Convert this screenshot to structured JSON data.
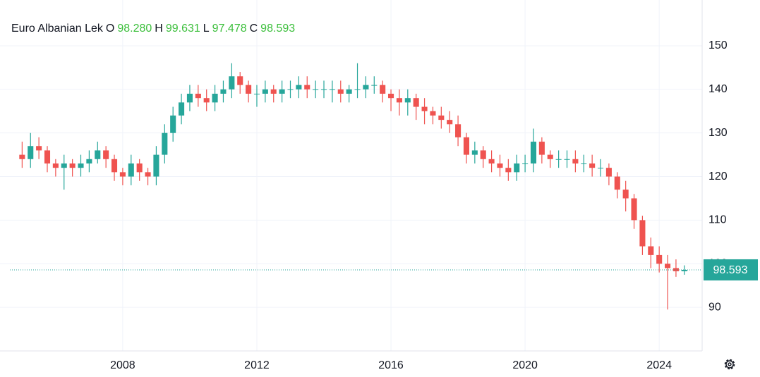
{
  "chart_data": {
    "type": "candlestick",
    "title": "Euro Albanian Lek",
    "legend": {
      "open_key": "O",
      "open": {
        "value": 98.28,
        "label": "98.280"
      },
      "high_key": "H",
      "high": {
        "value": 99.631,
        "label": "99.631"
      },
      "low_key": "L",
      "low": {
        "value": 97.478,
        "label": "97.478"
      },
      "close_key": "C",
      "close": {
        "value": 98.593,
        "label": "98.593"
      }
    },
    "last_price": {
      "value": 98.593,
      "label": "98.593"
    },
    "up_color": "#26a69a",
    "down_color": "#ef5350",
    "x": [
      2005,
      2005.25,
      2005.5,
      2005.75,
      2006,
      2006.25,
      2006.5,
      2006.75,
      2007,
      2007.25,
      2007.5,
      2007.75,
      2008,
      2008.25,
      2008.5,
      2008.75,
      2009,
      2009.25,
      2009.5,
      2009.75,
      2010,
      2010.25,
      2010.5,
      2010.75,
      2011,
      2011.25,
      2011.5,
      2011.75,
      2012,
      2012.25,
      2012.5,
      2012.75,
      2013,
      2013.25,
      2013.5,
      2013.75,
      2014,
      2014.25,
      2014.5,
      2014.75,
      2015,
      2015.25,
      2015.5,
      2015.75,
      2016,
      2016.25,
      2016.5,
      2016.75,
      2017,
      2017.25,
      2017.5,
      2017.75,
      2018,
      2018.25,
      2018.5,
      2018.75,
      2019,
      2019.25,
      2019.5,
      2019.75,
      2020,
      2020.25,
      2020.5,
      2020.75,
      2021,
      2021.25,
      2021.5,
      2021.75,
      2022,
      2022.25,
      2022.5,
      2022.75,
      2023,
      2023.25,
      2023.5,
      2023.75,
      2024,
      2024.25,
      2024.5,
      2024.75
    ],
    "open": [
      125,
      124,
      127,
      126,
      123,
      122,
      123,
      122,
      123,
      124,
      126,
      124,
      121,
      120,
      123,
      121,
      120,
      125,
      130,
      134,
      137,
      139,
      138,
      137,
      139,
      140,
      143,
      141,
      139,
      139,
      140,
      139,
      140,
      140,
      141,
      140,
      140,
      140,
      140,
      139,
      140,
      140,
      141,
      141,
      139,
      138,
      137,
      138,
      136,
      135,
      134,
      133,
      132,
      129,
      125,
      126,
      124,
      123,
      122,
      121,
      123,
      123,
      128,
      125,
      124,
      124,
      124,
      123,
      123,
      122,
      122,
      120,
      117,
      115,
      110,
      104,
      102,
      100,
      99,
      98.28
    ],
    "high": [
      128,
      130,
      129,
      127,
      124,
      125,
      124,
      125,
      126,
      128,
      127,
      125,
      122,
      125,
      124,
      122,
      127,
      132,
      136,
      139,
      141,
      141,
      140,
      141,
      142,
      146,
      144,
      142,
      141,
      142,
      141,
      142,
      142,
      143,
      143,
      142,
      142,
      142,
      142,
      141,
      146,
      143,
      143,
      142,
      140,
      140,
      140,
      139,
      138,
      136,
      136,
      135,
      134,
      130,
      128,
      127,
      126,
      125,
      124,
      125,
      125,
      131,
      129,
      126,
      126,
      126,
      126,
      125,
      125,
      124,
      123,
      121,
      119,
      116,
      111,
      106,
      104,
      102,
      101,
      99.631
    ],
    "low": [
      122,
      122,
      124,
      121,
      120,
      117,
      120,
      120,
      121,
      123,
      122,
      119,
      118,
      118,
      119,
      118,
      118,
      123,
      128,
      132,
      135,
      136,
      135,
      135,
      137,
      138,
      139,
      137,
      136,
      137,
      137,
      137,
      138,
      138,
      138,
      138,
      138,
      137,
      137,
      137,
      138,
      138,
      139,
      137,
      135,
      134,
      134,
      133,
      132,
      132,
      131,
      130,
      127,
      123,
      123,
      122,
      121,
      120,
      119,
      119,
      121,
      121,
      123,
      122,
      122,
      122,
      121,
      121,
      120,
      120,
      118,
      115,
      112,
      108,
      102,
      99,
      98,
      89.5,
      97,
      97.478
    ],
    "close": [
      124,
      127,
      126,
      123,
      122,
      123,
      122,
      123,
      124,
      126,
      124,
      121,
      120,
      123,
      121,
      120,
      125,
      130,
      134,
      137,
      139,
      138,
      137,
      139,
      140,
      143,
      141,
      139,
      139,
      140,
      139,
      140,
      140,
      141,
      140,
      140,
      140,
      140,
      139,
      140,
      140,
      141,
      141,
      139,
      138,
      137,
      138,
      136,
      135,
      134,
      133,
      132,
      129,
      125,
      126,
      124,
      123,
      122,
      121,
      123,
      123,
      128,
      125,
      124,
      124,
      124,
      123,
      123,
      122,
      122,
      120,
      117,
      115,
      110,
      104,
      102,
      100,
      99,
      98.28,
      98.593
    ],
    "xlim": [
      2004.34,
      2025.28
    ],
    "ylim": [
      80,
      160.5
    ],
    "xticks": [
      2008,
      2012,
      2016,
      2020,
      2024
    ],
    "yticks": [
      90,
      100,
      110,
      120,
      130,
      140,
      150
    ],
    "grid": true
  }
}
